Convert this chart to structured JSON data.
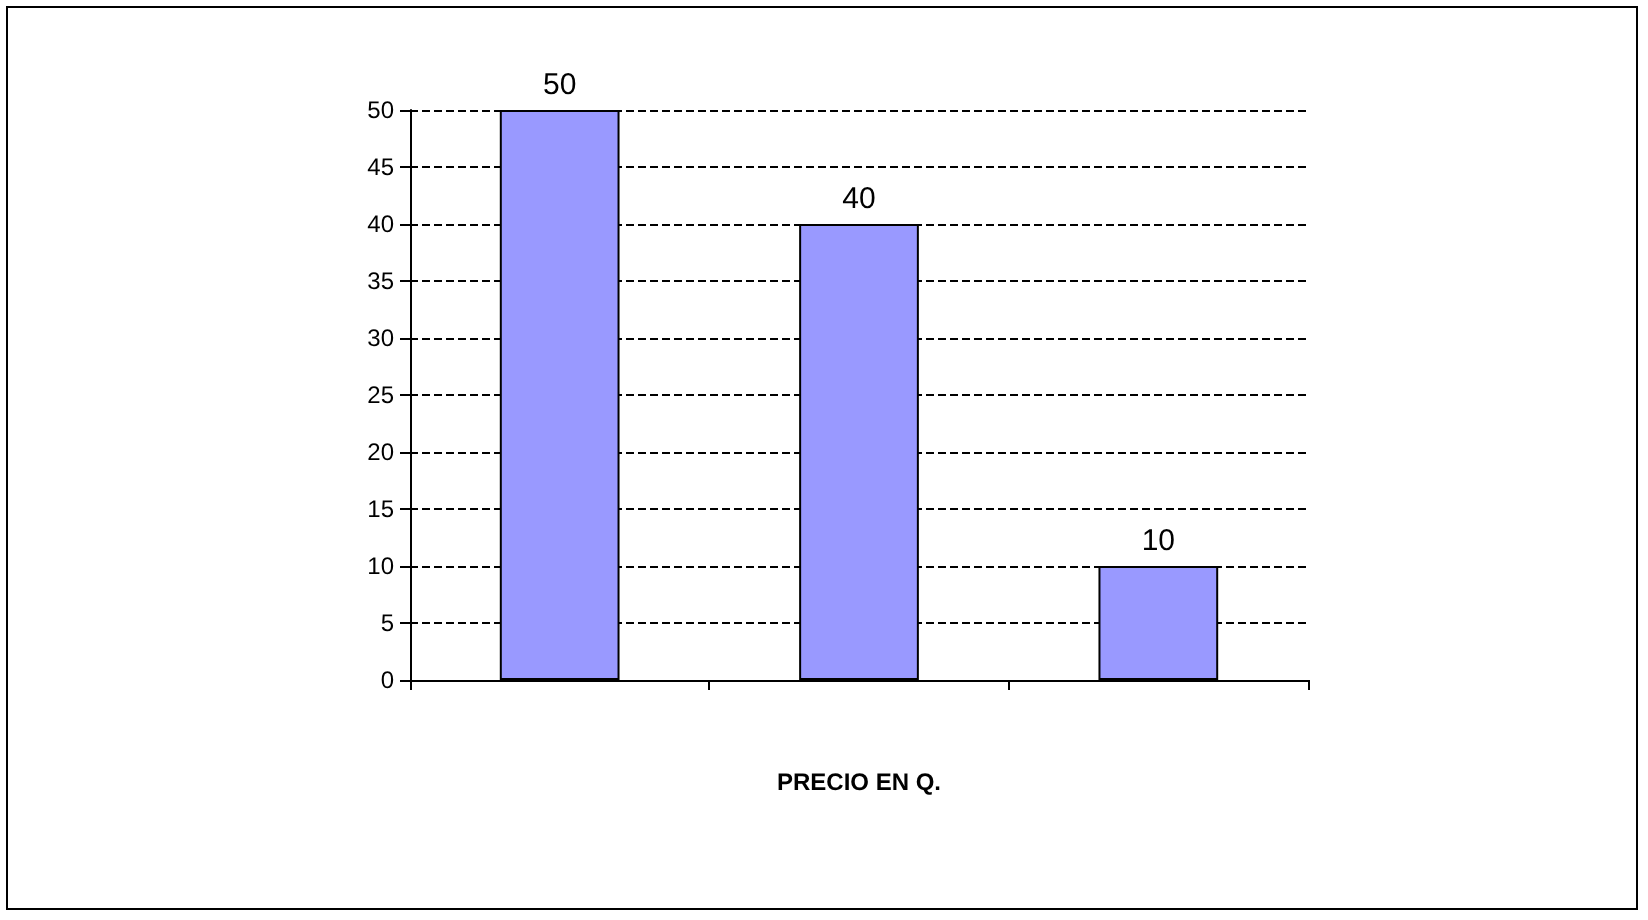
{
  "chart_data": {
    "type": "bar",
    "xlabel": "PRECIO EN Q.",
    "categories": [
      null,
      null,
      null
    ],
    "values": [
      50,
      40,
      10
    ],
    "color": "#9999ff",
    "ylim": [
      0,
      50
    ],
    "yticks": [
      0,
      5,
      10,
      15,
      20,
      25,
      30,
      35,
      40,
      45,
      50
    ],
    "grid": "y",
    "data_labels": true
  }
}
